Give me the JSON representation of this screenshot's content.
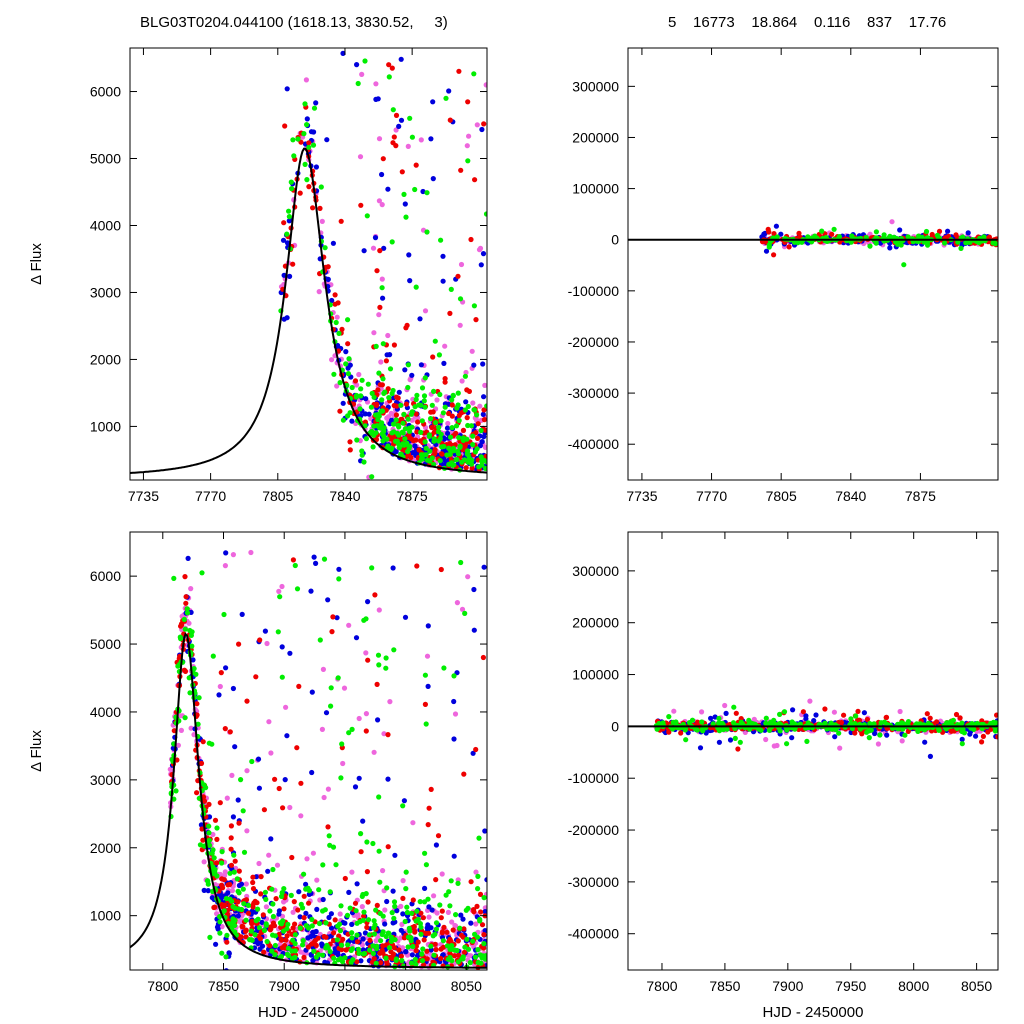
{
  "header": {
    "left": "BLG03T0204.044100 (1618.13, 3830.52,     3)",
    "right": "5    16773    18.864    0.116    837    17.76"
  },
  "colors": {
    "series": [
      "#0000dd",
      "#ee0000",
      "#ee66dd",
      "#00ee00"
    ],
    "model": "#000000",
    "axis": "#000000"
  },
  "chart_data": [
    {
      "type": "scatter",
      "panel": "top-left",
      "title": "",
      "xlabel": "",
      "ylabel": "Δ Flux",
      "xlim": [
        7728,
        7914
      ],
      "ylim": [
        200,
        6650
      ],
      "xticks": [
        7735,
        7770,
        7805,
        7840,
        7875
      ],
      "yticks": [
        1000,
        2000,
        3000,
        4000,
        5000,
        6000
      ],
      "model": {
        "name": "",
        "peak_x": 7819,
        "peak_y": 5150,
        "base_y": 220,
        "rise_width": 12,
        "fall_width": 13
      },
      "series_count": 4,
      "point_density": "heavy",
      "grid": false
    },
    {
      "type": "scatter",
      "panel": "top-right",
      "title": "",
      "xlabel": "",
      "ylabel": "",
      "xlim": [
        7728,
        7914
      ],
      "ylim": [
        -470000,
        375000
      ],
      "xticks": [
        7735,
        7770,
        7805,
        7840,
        7875
      ],
      "yticks": [
        -400000,
        -300000,
        -200000,
        -100000,
        0,
        100000,
        200000,
        300000
      ],
      "grid": false
    },
    {
      "type": "scatter",
      "panel": "bottom-left",
      "title": "",
      "xlabel": "HJD - 2450000",
      "ylabel": "Δ Flux",
      "xlim": [
        7773,
        8067
      ],
      "ylim": [
        200,
        6650
      ],
      "xticks": [
        7800,
        7850,
        7900,
        7950,
        8000,
        8050
      ],
      "yticks": [
        1000,
        2000,
        3000,
        4000,
        5000,
        6000
      ],
      "grid": false
    },
    {
      "type": "scatter",
      "panel": "bottom-right",
      "title": "",
      "xlabel": "HJD - 2450000",
      "ylabel": "",
      "xlim": [
        7773,
        8067
      ],
      "ylim": [
        -470000,
        375000
      ],
      "xticks": [
        7800,
        7850,
        7900,
        7950,
        8000,
        8050
      ],
      "yticks": [
        -400000,
        -300000,
        -200000,
        -100000,
        0,
        100000,
        200000,
        300000
      ],
      "grid": false
    }
  ]
}
